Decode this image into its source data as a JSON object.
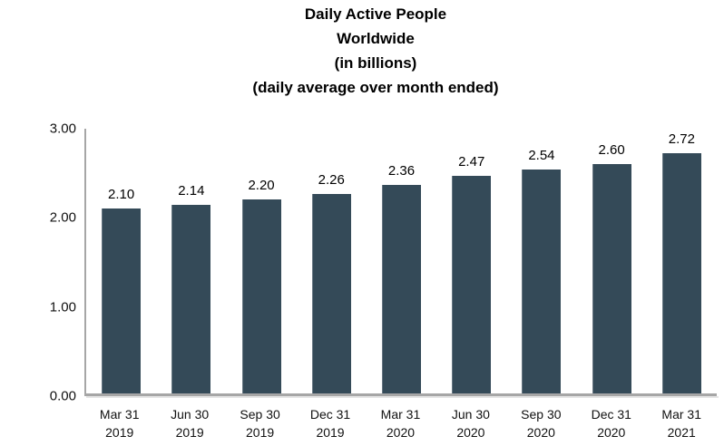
{
  "title_lines": [
    "Daily Active People",
    "Worldwide",
    "(in billions)",
    "(daily average over month ended)"
  ],
  "chart_data": {
    "type": "bar",
    "title": "Daily Active People Worldwide (in billions) (daily average over month ended)",
    "categories": [
      [
        "Mar 31",
        "2019"
      ],
      [
        "Jun 30",
        "2019"
      ],
      [
        "Sep 30",
        "2019"
      ],
      [
        "Dec 31",
        "2019"
      ],
      [
        "Mar 31",
        "2020"
      ],
      [
        "Jun 30",
        "2020"
      ],
      [
        "Sep 30",
        "2020"
      ],
      [
        "Dec 31",
        "2020"
      ],
      [
        "Mar 31",
        "2021"
      ]
    ],
    "values": [
      2.1,
      2.14,
      2.2,
      2.26,
      2.36,
      2.47,
      2.54,
      2.6,
      2.72
    ],
    "value_labels": [
      "2.10",
      "2.14",
      "2.20",
      "2.26",
      "2.36",
      "2.47",
      "2.54",
      "2.60",
      "2.72"
    ],
    "ytick_labels": [
      "3.00",
      "2.00",
      "1.00",
      "0.00"
    ],
    "ylim": [
      0,
      3
    ],
    "xlabel": "",
    "ylabel": "",
    "grid": false,
    "legend": "none",
    "bar_color": "#344a58",
    "axis_color": "#a6a6a6",
    "label_color": "#000000"
  }
}
